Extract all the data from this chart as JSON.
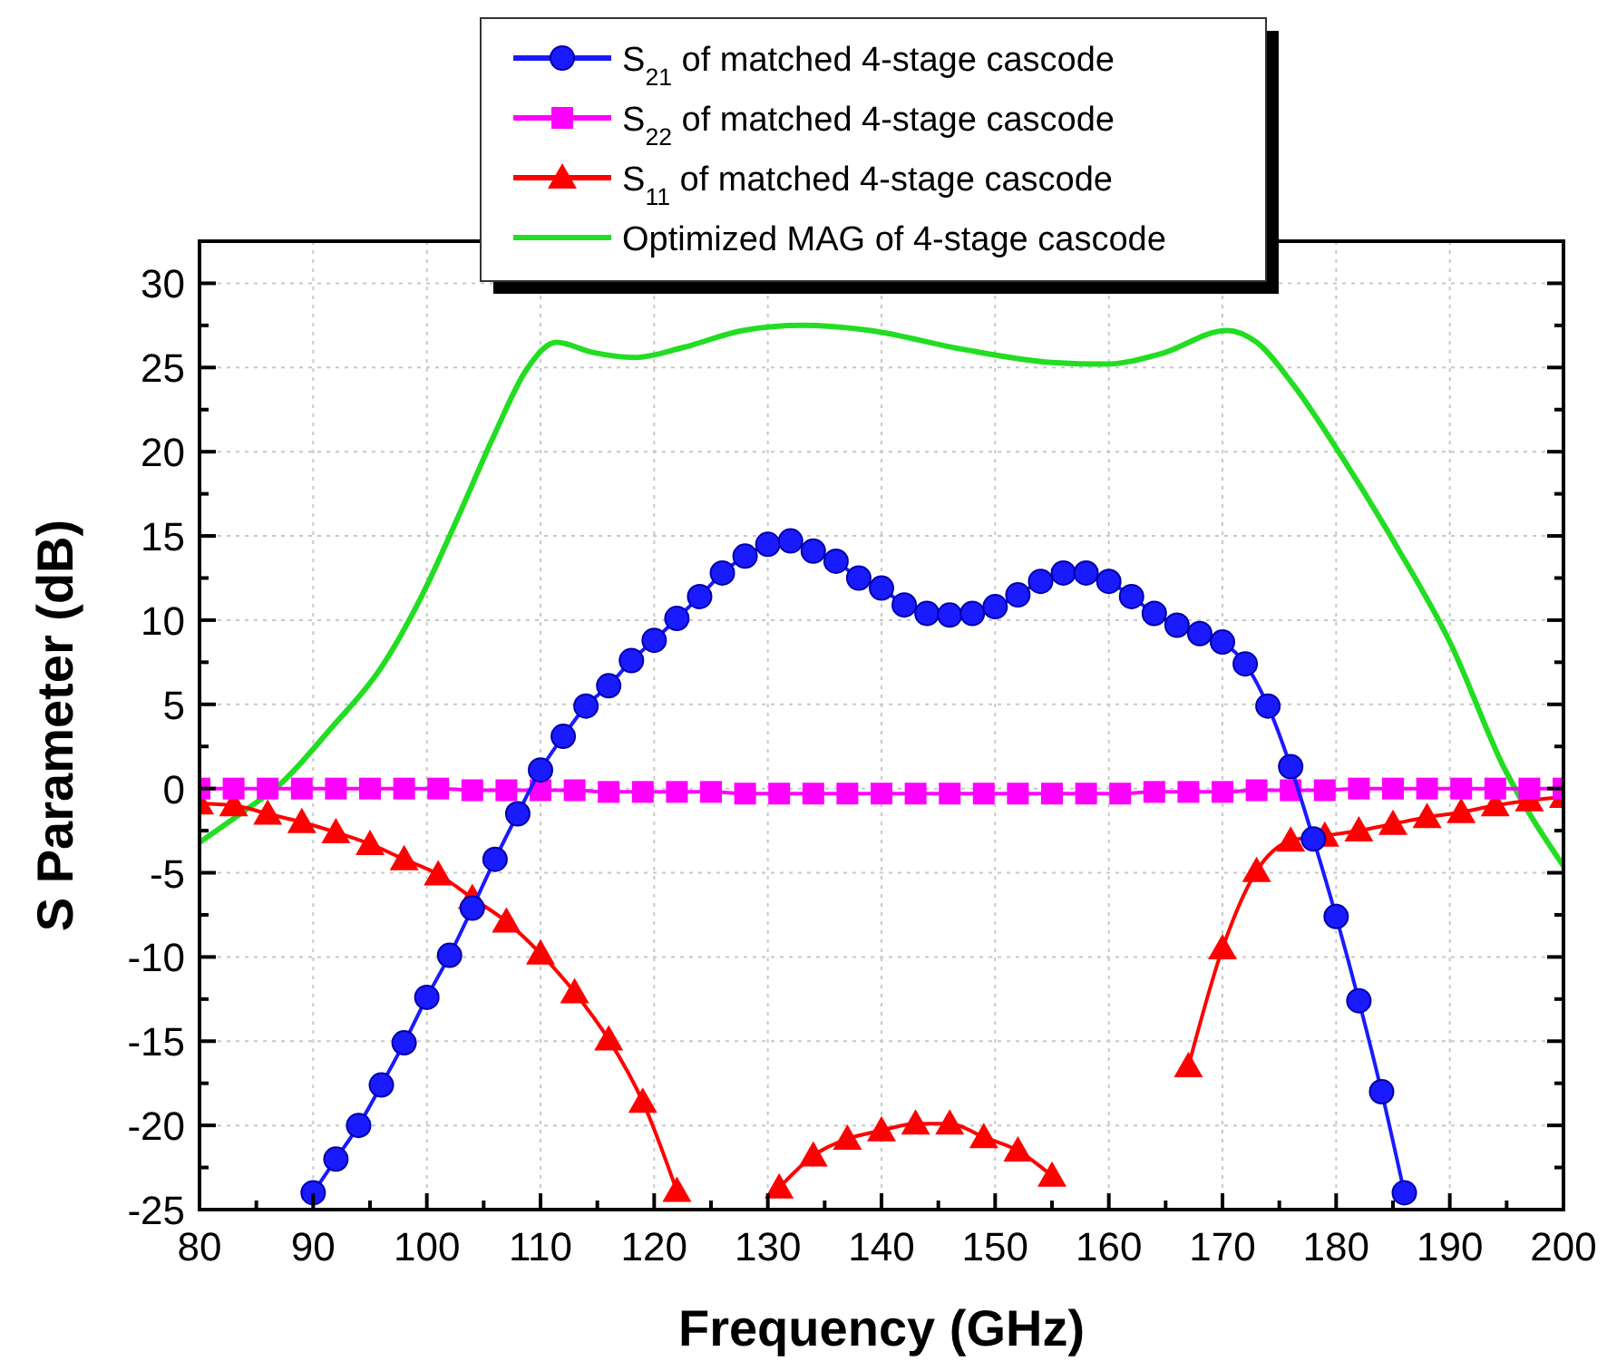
{
  "chart_data": {
    "type": "line",
    "xlabel": "Frequency (GHz)",
    "ylabel": "S Parameter (dB)",
    "xlim": [
      80,
      200
    ],
    "ylim": [
      -25,
      32.5
    ],
    "xticks": [
      80,
      {
        "value": 85,
        "label": null
      },
      90,
      {
        "value": 95,
        "label": null
      },
      100,
      {
        "value": 105,
        "label": null
      },
      110,
      {
        "value": 115,
        "label": null
      },
      120,
      {
        "value": 125,
        "label": null
      },
      130,
      {
        "value": 135,
        "label": null
      },
      140,
      {
        "value": 145,
        "label": null
      },
      150,
      {
        "value": 155,
        "label": null
      },
      160,
      {
        "value": 165,
        "label": null
      },
      170,
      {
        "value": 175,
        "label": null
      },
      180,
      {
        "value": 185,
        "label": null
      },
      190,
      {
        "value": 195,
        "label": null
      },
      200
    ],
    "yticks": [
      -25,
      {
        "value": -22.5,
        "label": null
      },
      -20,
      {
        "value": -17.5,
        "label": null
      },
      -15,
      {
        "value": -12.5,
        "label": null
      },
      -10,
      {
        "value": -7.5,
        "label": null
      },
      -5,
      {
        "value": -2.5,
        "label": null
      },
      0,
      {
        "value": 2.5,
        "label": null
      },
      5,
      {
        "value": 7.5,
        "label": null
      },
      10,
      {
        "value": 12.5,
        "label": null
      },
      15,
      {
        "value": 17.5,
        "label": null
      },
      20,
      {
        "value": 22.5,
        "label": null
      },
      25,
      {
        "value": 27.5,
        "label": null
      },
      30
    ],
    "grid": true,
    "legend": "top",
    "line_style": "solid",
    "series": [
      {
        "name": "S$_{21}$ of matched 4-stage cascode",
        "color": "#1a1aff",
        "marker": "circle",
        "x": [
          90,
          92,
          94,
          96,
          98,
          100,
          102,
          104,
          106,
          108,
          110,
          112,
          114,
          116,
          118,
          120,
          122,
          124,
          126,
          128,
          130,
          132,
          134,
          136,
          138,
          140,
          142,
          144,
          146,
          148,
          150,
          152,
          154,
          156,
          158,
          160,
          162,
          164,
          166,
          168,
          170,
          172,
          174,
          176,
          178,
          180,
          182,
          184,
          186
        ],
        "values": [
          -24.0,
          -22.0,
          -20.0,
          -17.6,
          -15.1,
          -12.4,
          -9.9,
          -7.1,
          -4.2,
          -1.5,
          1.1,
          3.1,
          4.9,
          6.1,
          7.6,
          8.8,
          10.1,
          11.4,
          12.8,
          13.8,
          14.5,
          14.7,
          14.1,
          13.5,
          12.5,
          11.9,
          10.9,
          10.4,
          10.3,
          10.4,
          10.8,
          11.5,
          12.3,
          12.8,
          12.8,
          12.3,
          11.4,
          10.4,
          9.7,
          9.2,
          8.7,
          7.4,
          4.9,
          1.3,
          -3.0,
          -7.6,
          -12.6,
          -18.0,
          -24.0
        ]
      },
      {
        "name": "S$_{22}$ of matched 4-stage cascode",
        "color": "#ff00ff",
        "marker": "square",
        "x": [
          80,
          83,
          86,
          89,
          92,
          95,
          98,
          101,
          104,
          107,
          110,
          113,
          116,
          119,
          122,
          125,
          128,
          131,
          134,
          137,
          140,
          143,
          146,
          149,
          152,
          155,
          158,
          161,
          164,
          167,
          170,
          173,
          176,
          179,
          182,
          185,
          188,
          191,
          194,
          197,
          200
        ],
        "values": [
          0.0,
          0.0,
          0.0,
          0.0,
          0.0,
          0.0,
          0.0,
          0.0,
          -0.1,
          -0.1,
          -0.1,
          -0.1,
          -0.2,
          -0.2,
          -0.2,
          -0.2,
          -0.3,
          -0.3,
          -0.3,
          -0.3,
          -0.3,
          -0.3,
          -0.3,
          -0.3,
          -0.3,
          -0.3,
          -0.3,
          -0.3,
          -0.2,
          -0.2,
          -0.2,
          -0.1,
          -0.1,
          -0.1,
          0.0,
          0.0,
          0.0,
          0.0,
          0.0,
          0.0,
          0.0
        ]
      },
      {
        "name": "S$_{11}$ of matched 4-stage cascode",
        "color": "#ff0000",
        "marker": "triangle",
        "x": [
          80,
          83,
          86,
          89,
          92,
          95,
          98,
          101,
          104,
          107,
          110,
          113,
          116,
          119,
          122,
          125,
          128,
          131,
          134,
          137,
          140,
          143,
          146,
          149,
          152,
          155,
          158,
          161,
          164,
          167,
          170,
          173,
          176,
          179,
          182,
          185,
          188,
          191,
          194,
          197,
          200
        ],
        "values": [
          -0.9,
          -1.0,
          -1.5,
          -2.0,
          -2.6,
          -3.3,
          -4.2,
          -5.1,
          -6.5,
          -7.9,
          -9.8,
          -12.1,
          -14.9,
          -18.6,
          -23.9,
          null,
          null,
          -23.7,
          -21.8,
          -20.8,
          -20.3,
          -19.9,
          -19.9,
          -20.7,
          -21.5,
          -23.0,
          null,
          null,
          null,
          -16.5,
          -9.5,
          -4.9,
          -3.1,
          -2.8,
          -2.5,
          -2.1,
          -1.7,
          -1.4,
          -1.0,
          -0.7,
          -0.5
        ]
      },
      {
        "name": "Optimized MAG of 4-stage cascode",
        "color": "#22dd22",
        "marker": "none",
        "x": [
          80,
          84,
          87,
          91.6,
          96,
          99.6,
          102.8,
          106,
          108.7,
          111.4,
          114.6,
          118.3,
          122.6,
          127.8,
          133,
          139,
          147,
          155,
          159.7,
          164.5,
          170.4,
          173,
          176.2,
          180.5,
          185.3,
          190,
          194.8,
          200
        ],
        "values": [
          -3.2,
          -1.3,
          0.2,
          3.6,
          7.2,
          11.5,
          16.2,
          21.1,
          24.8,
          26.5,
          25.9,
          25.6,
          26.2,
          27.2,
          27.5,
          27.2,
          26.1,
          25.3,
          25.2,
          25.8,
          27.2,
          26.5,
          24.0,
          19.7,
          14.4,
          8.7,
          1.2,
          -4.6
        ]
      }
    ]
  }
}
